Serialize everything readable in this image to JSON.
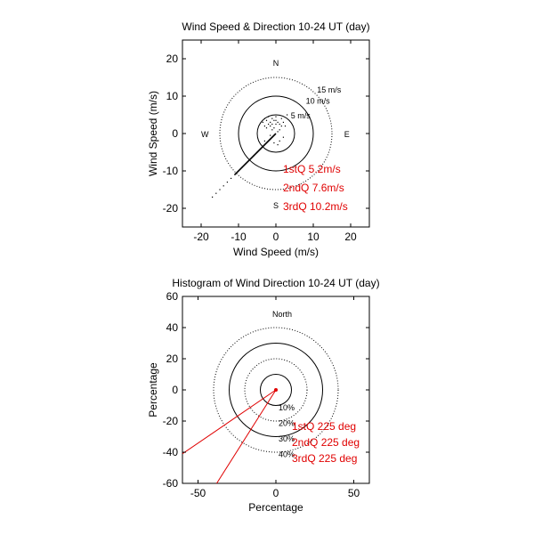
{
  "chart_data": [
    {
      "type": "scatter",
      "title": "Wind Speed & Direction 10-24 UT (day)",
      "xlabel": "Wind Speed (m/s)",
      "ylabel": "Wind Speed (m/s)",
      "xlim": [
        -25,
        25
      ],
      "ylim": [
        -25,
        25
      ],
      "xticks": [
        -20,
        -10,
        0,
        10,
        20
      ],
      "yticks": [
        20,
        10,
        0,
        -10,
        -20
      ],
      "xtick_labels": [
        "-20",
        "-10",
        "0",
        "10",
        "20"
      ],
      "ytick_labels": [
        "20",
        "10",
        "0",
        "-10",
        "-20"
      ],
      "grid": false,
      "compass": [
        {
          "label": "N",
          "x": 0,
          "y": 19
        },
        {
          "label": "S",
          "x": 0,
          "y": -19
        },
        {
          "label": "W",
          "x": -19,
          "y": 0
        },
        {
          "label": "E",
          "x": 19,
          "y": 0
        }
      ],
      "rings": [
        {
          "radius": 5,
          "style": "solid",
          "label": "5 m/s",
          "label_x": 4,
          "label_y": 4
        },
        {
          "radius": 10,
          "style": "solid",
          "label": "10 m/s",
          "label_x": 8,
          "label_y": 8
        },
        {
          "radius": 15,
          "style": "dotted",
          "label": "15 m/s",
          "label_x": 11,
          "label_y": 11
        }
      ],
      "points": [
        [
          -3,
          4
        ],
        [
          -2.5,
          3.5
        ],
        [
          -2,
          4.5
        ],
        [
          -1.5,
          3
        ],
        [
          -1,
          4
        ],
        [
          -0.5,
          3.5
        ],
        [
          0,
          4.5
        ],
        [
          -2,
          2.5
        ],
        [
          -1.5,
          2
        ],
        [
          -1,
          2.5
        ],
        [
          -0.5,
          1.5
        ],
        [
          0,
          2.5
        ],
        [
          0.5,
          3
        ],
        [
          1,
          2.5
        ],
        [
          1.5,
          2
        ],
        [
          1,
          1
        ],
        [
          0.5,
          0.5
        ],
        [
          -1,
          1
        ],
        [
          -2.5,
          1.5
        ],
        [
          -3,
          2
        ],
        [
          1.5,
          4
        ],
        [
          2,
          3
        ],
        [
          2.5,
          2
        ],
        [
          2,
          -1
        ],
        [
          1,
          -2
        ],
        [
          -1,
          -1
        ],
        [
          -3,
          -2
        ],
        [
          -0.5,
          -2.5
        ],
        [
          0.5,
          -3
        ],
        [
          -1.5,
          -0.5
        ],
        [
          3,
          5
        ],
        [
          -3.5,
          3
        ],
        [
          0,
          3.5
        ],
        [
          -4,
          -4
        ],
        [
          -5,
          -5
        ],
        [
          -6,
          -6
        ],
        [
          -7,
          -7
        ],
        [
          -8,
          -8
        ],
        [
          -9,
          -9
        ],
        [
          -10,
          -10
        ],
        [
          -11,
          -11
        ],
        [
          -12,
          -12
        ],
        [
          -13,
          -13
        ],
        [
          -14,
          -14
        ],
        [
          -15,
          -15
        ],
        [
          -16,
          -16
        ],
        [
          -17,
          -17
        ]
      ],
      "vector": {
        "x": -11,
        "y": -11
      },
      "annotations": [
        "1stQ 5.2m/s",
        "2ndQ 7.6m/s",
        "3rdQ 10.2m/s"
      ],
      "annotation_color": "#e00000"
    },
    {
      "type": "polar-histogram",
      "title": "Histogram of Wind Direction 10-24 UT (day)",
      "xlabel": "Percentage",
      "ylabel": "Percentage",
      "xlim": [
        -60,
        60
      ],
      "ylim": [
        -60,
        60
      ],
      "xticks": [
        -50,
        0,
        50
      ],
      "yticks": [
        60,
        40,
        20,
        0,
        -20,
        -40,
        -60
      ],
      "xtick_labels": [
        "-50",
        "0",
        "50"
      ],
      "ytick_labels": [
        "60",
        "40",
        "20",
        "0",
        "-20",
        "-40",
        "-60"
      ],
      "grid": false,
      "north_label": "North",
      "rings": [
        {
          "radius": 10,
          "style": "solid",
          "label": "10%"
        },
        {
          "radius": 20,
          "style": "dotted",
          "label": "20%"
        },
        {
          "radius": 30,
          "style": "solid",
          "label": "30%"
        },
        {
          "radius": 40,
          "style": "dotted",
          "label": "40%"
        }
      ],
      "red_lines": [
        {
          "x": -60,
          "y": -41
        },
        {
          "x": -38,
          "y": -60
        }
      ],
      "annotations": [
        "1stQ 225 deg",
        "2ndQ 225 deg",
        "3rdQ 225 deg"
      ],
      "annotation_color": "#e00000"
    }
  ]
}
